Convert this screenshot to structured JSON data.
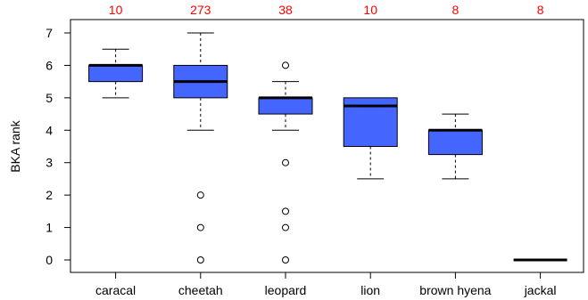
{
  "chart_data": {
    "type": "box",
    "ylabel": "BKA rank",
    "xlabel": "",
    "ylim": [
      0,
      7
    ],
    "yticks": [
      0,
      1,
      2,
      3,
      4,
      5,
      6,
      7
    ],
    "grid": false,
    "legend": "none",
    "box_color": "#4466ff",
    "count_color": "#ff0000",
    "categories": [
      "caracal",
      "cheetah",
      "leopard",
      "lion",
      "brown hyena",
      "jackal"
    ],
    "counts": [
      "10",
      "273",
      "38",
      "10",
      "8",
      "8"
    ],
    "boxes": [
      {
        "category": "caracal",
        "whisker_low": 5.0,
        "q1": 5.5,
        "median": 6.0,
        "q3": 6.0,
        "whisker_high": 6.5,
        "outliers": []
      },
      {
        "category": "cheetah",
        "whisker_low": 4.0,
        "q1": 5.0,
        "median": 5.5,
        "q3": 6.0,
        "whisker_high": 7.0,
        "outliers": [
          0,
          1,
          2
        ]
      },
      {
        "category": "leopard",
        "whisker_low": 4.0,
        "q1": 4.5,
        "median": 5.0,
        "q3": 5.0,
        "whisker_high": 5.5,
        "outliers": [
          0,
          1,
          1.5,
          3,
          6
        ]
      },
      {
        "category": "lion",
        "whisker_low": 2.5,
        "q1": 3.5,
        "median": 4.75,
        "q3": 5.0,
        "whisker_high": 5.0,
        "outliers": []
      },
      {
        "category": "brown hyena",
        "whisker_low": 2.5,
        "q1": 3.25,
        "median": 4.0,
        "q3": 4.0,
        "whisker_high": 4.5,
        "outliers": []
      },
      {
        "category": "jackal",
        "whisker_low": 0,
        "q1": 0,
        "median": 0,
        "q3": 0,
        "whisker_high": 0,
        "outliers": []
      }
    ]
  }
}
